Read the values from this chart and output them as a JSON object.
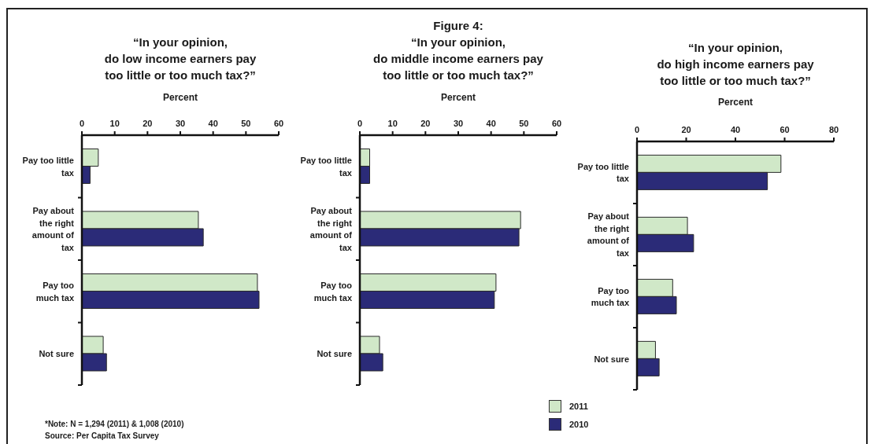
{
  "chart_data": [
    {
      "type": "bar",
      "orientation": "horizontal",
      "title": "“In your opinion,\ndo low income earners pay\ntoo little or too much tax?”",
      "xlabel": "Percent",
      "categories": [
        "Pay too little\ntax",
        "Pay about\nthe right\namount of\ntax",
        "Pay too\nmuch tax",
        "Not sure"
      ],
      "series": [
        {
          "color": "#d0e8c8",
          "values": [
            5,
            35.5,
            53.5,
            6.5
          ]
        },
        {
          "color": "#2b2b78",
          "values": [
            2.5,
            37,
            54,
            7.5
          ]
        }
      ],
      "xlim": [
        0,
        60
      ],
      "xticks": [
        0,
        10,
        20,
        30,
        40,
        50,
        60
      ],
      "annotations": [
        "*Note: N = 1,294 (2011) & 1,008 (2010)",
        "Source: Per Capita Tax Survey"
      ]
    },
    {
      "type": "bar",
      "orientation": "horizontal",
      "title": "Figure 4:\n“In your opinion,\ndo middle income earners pay\ntoo little or too much tax?”",
      "xlabel": "Percent",
      "categories": [
        "Pay too little\ntax",
        "Pay about\nthe right\namount of\ntax",
        "Pay too\nmuch tax",
        "Not sure"
      ],
      "series": [
        {
          "name": "2011",
          "color": "#d0e8c8",
          "values": [
            3,
            49,
            41.5,
            6
          ]
        },
        {
          "name": "2010",
          "color": "#2b2b78",
          "values": [
            3,
            48.5,
            41,
            7
          ]
        }
      ],
      "xlim": [
        0,
        60
      ],
      "xticks": [
        0,
        10,
        20,
        30,
        40,
        50,
        60
      ],
      "legend": "bottom right"
    },
    {
      "type": "bar",
      "orientation": "horizontal",
      "title": "“In your opinion,\ndo high income earners pay\ntoo little or too much tax?”",
      "xlabel": "Percent",
      "categories": [
        "Pay too little\ntax",
        "Pay about\nthe right\namount of\ntax",
        "Pay too\nmuch tax",
        "Not sure"
      ],
      "series": [
        {
          "color": "#d0e8c8",
          "values": [
            58.5,
            20.5,
            14.5,
            7.5
          ]
        },
        {
          "color": "#2b2b78",
          "values": [
            53,
            23,
            16,
            9
          ]
        }
      ],
      "xlim": [
        0,
        80
      ],
      "xticks": [
        0,
        20,
        40,
        60,
        80
      ]
    }
  ]
}
